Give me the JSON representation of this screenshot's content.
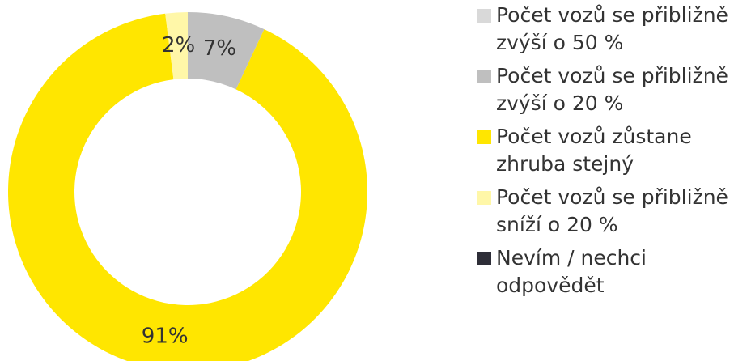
{
  "chart_data": {
    "type": "donut",
    "categories": [
      "Počet vozů se přibližně zvýší o 50 %",
      "Počet vozů se přibližně zvýší o 20 %",
      "Počet vozů zůstane zhruba stejný",
      "Počet vozů se přibližně sníží o 20 %",
      "Nevím / nechci odpovědět"
    ],
    "values": [
      0,
      7,
      91,
      2,
      0
    ],
    "value_labels": [
      null,
      "7%",
      "91%",
      "2%",
      null
    ],
    "colors": [
      "#d9d9d9",
      "#bfbfbf",
      "#ffe600",
      "#fff7a8",
      "#2e2e38"
    ],
    "legend": "right"
  }
}
